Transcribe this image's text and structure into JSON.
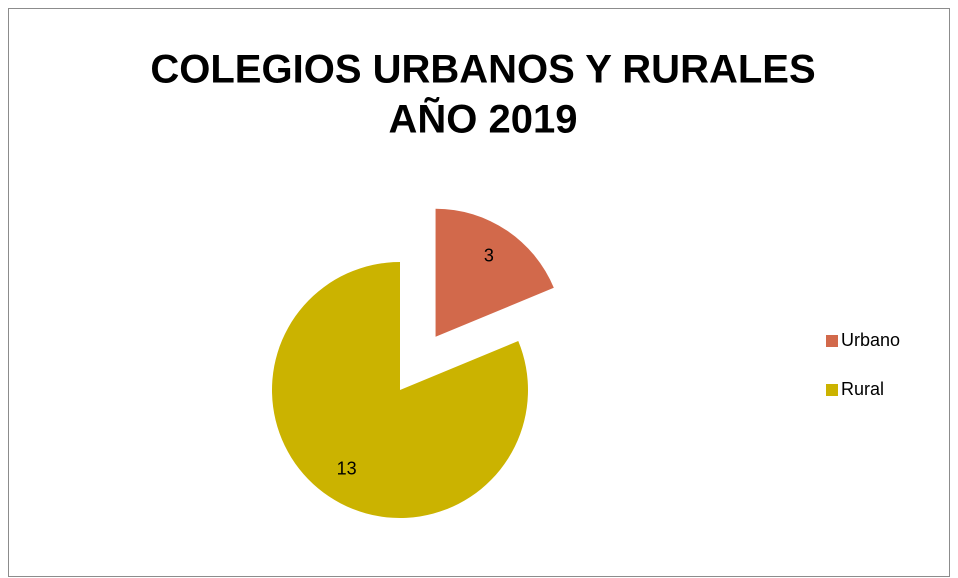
{
  "chart_data": {
    "type": "pie",
    "title": [
      "COLEGIOS URBANOS  Y RURALES",
      "AÑO 2019"
    ],
    "categories": [
      "Urbano",
      "Rural"
    ],
    "values": [
      3,
      13
    ],
    "colors": [
      "#d2694b",
      "#cbb300"
    ],
    "exploded": [
      true,
      false
    ],
    "legend": "right"
  }
}
